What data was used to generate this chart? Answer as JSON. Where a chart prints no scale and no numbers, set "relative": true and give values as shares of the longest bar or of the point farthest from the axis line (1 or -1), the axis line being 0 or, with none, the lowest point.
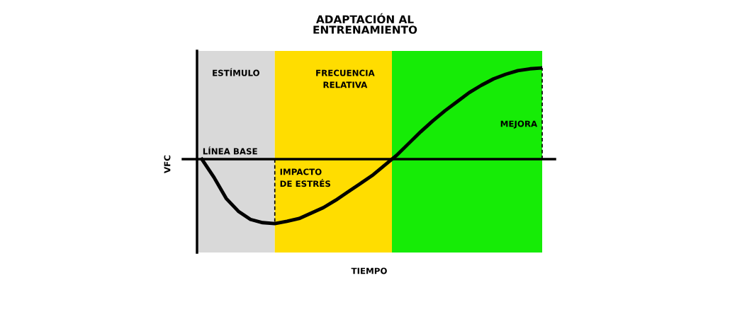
{
  "chart_data": {
    "type": "line",
    "title": "ADAPTACIÓN AL\nENTRENAMIENTO",
    "ylabel": "VFC",
    "relative": true,
    "categories": [
      null,
      null,
      null,
      null,
      null,
      null,
      null,
      null,
      null,
      null,
      null,
      null,
      null,
      null,
      null,
      null,
      null,
      null,
      null,
      null,
      null,
      null,
      null,
      null,
      null,
      null,
      null,
      null,
      null
    ],
    "marker": "none",
    "line_style": "solid",
    "series": [
      {
        "color": "#000000",
        "values": [
          0,
          -0.2,
          -0.43,
          -0.57,
          -0.66,
          -0.695,
          -0.705,
          -0.68,
          -0.65,
          -0.59,
          -0.53,
          -0.45,
          -0.36,
          -0.27,
          -0.18,
          -0.07,
          0.04,
          0.17,
          0.3,
          0.42,
          0.53,
          0.63,
          0.73,
          0.81,
          0.88,
          0.93,
          0.97,
          0.99,
          1
        ]
      }
    ],
    "ref_lines": [
      {
        "axis": "y",
        "value": 0,
        "label": "LÍNEA BASE",
        "color": "#000000",
        "line_style": "solid"
      }
    ],
    "annotations": [
      "ESTÍMULO",
      "FRECUENCIA\nRELATIVA",
      "IMPACTO\nDE ESTRÉS",
      "MEJORA",
      "TIEMPO"
    ]
  }
}
